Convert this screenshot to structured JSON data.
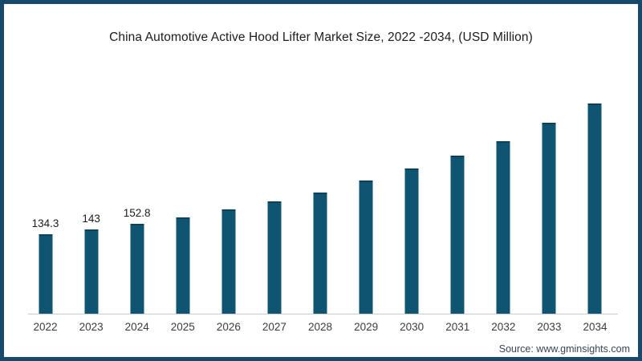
{
  "frame": {
    "border_color": "#17496a",
    "background": "#ffffff"
  },
  "source_label": "Source: www.gminsights.com",
  "chart_data": {
    "type": "bar",
    "title": "China Automotive Active Hood Lifter Market Size, 2022 -2034, (USD Million)",
    "categories": [
      "2022",
      "2023",
      "2024",
      "2025",
      "2026",
      "2027",
      "2028",
      "2029",
      "2030",
      "2031",
      "2032",
      "2033",
      "2034"
    ],
    "values": [
      134.3,
      143,
      152.8,
      163.1,
      176.2,
      190.1,
      205.5,
      224.8,
      246.0,
      266.6,
      291.9,
      322.9,
      355.3
    ],
    "data_labels": [
      "134.3",
      "143",
      "152.8",
      "",
      "",
      "",
      "",
      "",
      "",
      "",
      "",
      "",
      ""
    ],
    "xlabel": "",
    "ylabel": "",
    "ylim": [
      0,
      380
    ],
    "grid": false,
    "legend": false,
    "bar_color": "#0f5470",
    "bar_top_color": "#0b4258",
    "axis_line_color": "#c9c9c9"
  }
}
